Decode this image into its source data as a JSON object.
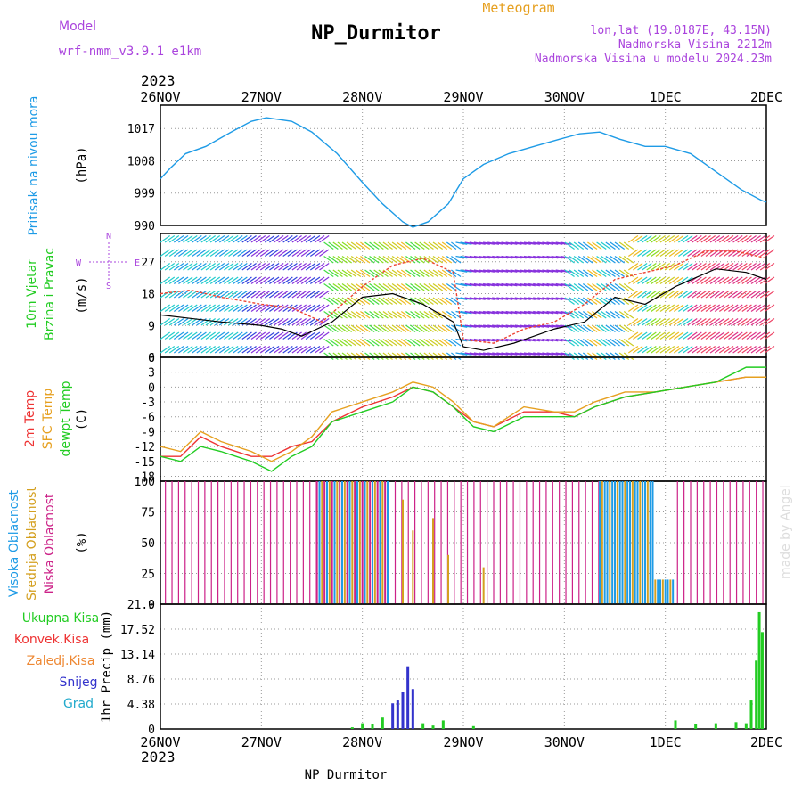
{
  "header": {
    "model_label": "Model",
    "model_name": "wrf-nmm_v3.9.1  e1km",
    "station": "NP_Durmitor",
    "meteogram": "Meteogram",
    "lonlat": "lon,lat (19.0187E, 43.15N)",
    "elevation": "Nadmorska Visina 2212m",
    "model_elevation": "Nadmorska Visina u modelu 2024.23m",
    "year_top": "2023",
    "year_bottom": "2023",
    "footer_station": "NP_Durmitor",
    "credit": "made by Angel"
  },
  "colors": {
    "pressure": "#1e9be6",
    "wind_label": "#22cc22",
    "temp_2m": "#ee3333",
    "temp_sfc": "#e6a020",
    "dewpoint": "#22cc22",
    "cloud_high": "#1e9be6",
    "cloud_mid": "#d4a020",
    "cloud_low": "#cc2288",
    "precip_total": "#22cc22",
    "precip_conv": "#ee3333",
    "precip_ice": "#ee8833",
    "snow": "#3333cc",
    "hail": "#22aacc",
    "model": "#aa44dd"
  },
  "chart_data": {
    "type": "line",
    "x_labels": [
      "26NOV",
      "27NOV",
      "28NOV",
      "29NOV",
      "30NOV",
      "1DEC",
      "2DEC"
    ],
    "panels": [
      {
        "id": "pressure",
        "ylabel": "(hPa)",
        "side_labels": [
          "Pritisak na nivou mora"
        ],
        "yticks": [
          "1017",
          "1008",
          "999",
          "990"
        ],
        "ylim": [
          990,
          1023.5
        ],
        "series": [
          {
            "key": "pressure",
            "x": [
              0,
              0.1,
              0.25,
              0.45,
              0.7,
              0.9,
              1.05,
              1.3,
              1.5,
              1.75,
              2.0,
              2.2,
              2.4,
              2.5,
              2.65,
              2.85,
              3.0,
              3.2,
              3.45,
              3.7,
              3.95,
              4.15,
              4.35,
              4.55,
              4.8,
              5.0,
              5.25,
              5.5,
              5.75,
              5.95,
              6.0
            ],
            "y": [
              1003,
              1006,
              1010,
              1012,
              1016,
              1019,
              1020,
              1019,
              1016,
              1010,
              1002,
              996,
              991,
              989.5,
              991,
              996,
              1003,
              1007,
              1010,
              1012,
              1014,
              1015.5,
              1016,
              1014,
              1012,
              1012,
              1010,
              1005,
              1000,
              997,
              996.5
            ]
          }
        ]
      },
      {
        "id": "wind",
        "ylabel": "(m/s)",
        "side_labels": [
          "10m Vjetar",
          "Brzina i Pravac"
        ],
        "compass": [
          "N",
          "W",
          "E",
          "S"
        ],
        "yticks": [
          "27",
          "18",
          "9",
          "0"
        ],
        "ylim": [
          0,
          35
        ],
        "series": [
          {
            "key": "wind_speed",
            "x": [
              0,
              0.3,
              0.6,
              1.0,
              1.2,
              1.4,
              1.7,
              2.0,
              2.3,
              2.6,
              2.9,
              3.0,
              3.2,
              3.5,
              3.9,
              4.2,
              4.5,
              4.8,
              5.1,
              5.5,
              5.8,
              6.0
            ],
            "y": [
              12,
              11,
              10,
              9,
              8,
              6,
              10,
              17,
              18,
              15,
              10,
              3,
              2,
              4,
              8,
              10,
              17,
              15,
              20,
              25,
              24,
              22
            ]
          },
          {
            "key": "wind_gust",
            "x": [
              0,
              0.3,
              0.6,
              1.0,
              1.3,
              1.6,
              2.0,
              2.3,
              2.6,
              2.9,
              3.0,
              3.3,
              3.6,
              3.9,
              4.2,
              4.5,
              4.8,
              5.1,
              5.4,
              5.7,
              6.0
            ],
            "y": [
              18,
              19,
              17,
              15,
              14,
              10,
              20,
              26,
              28,
              24,
              5,
              4,
              8,
              10,
              15,
              22,
              24,
              26,
              30,
              30,
              28
            ]
          }
        ]
      },
      {
        "id": "temperature",
        "ylabel": "(C)",
        "side_labels": [
          "2m Temp",
          "SFC Temp",
          "dewpt Temp"
        ],
        "yticks": [
          "6",
          "3",
          "0",
          "-3",
          "-6",
          "-9",
          "-12",
          "-15",
          "-18"
        ],
        "ylim": [
          -19,
          6
        ],
        "series": [
          {
            "key": "temp_2m",
            "x": [
              0,
              0.2,
              0.4,
              0.6,
              0.9,
              1.1,
              1.3,
              1.5,
              1.7,
              2.0,
              2.3,
              2.5,
              2.7,
              2.9,
              3.1,
              3.3,
              3.6,
              3.9,
              4.1,
              4.3,
              4.6,
              4.9,
              5.2,
              5.5,
              5.8,
              6.0
            ],
            "y": [
              -14,
              -14,
              -10,
              -12,
              -14,
              -14,
              -12,
              -11,
              -7,
              -4,
              -2,
              0,
              -1,
              -4,
              -7,
              -8,
              -5,
              -5,
              -6,
              -4,
              -2,
              -1,
              0,
              1,
              2,
              2
            ]
          },
          {
            "key": "temp_sfc",
            "x": [
              0,
              0.2,
              0.4,
              0.6,
              0.9,
              1.1,
              1.3,
              1.5,
              1.7,
              2.0,
              2.3,
              2.5,
              2.7,
              2.9,
              3.1,
              3.3,
              3.6,
              3.9,
              4.1,
              4.3,
              4.6,
              4.9,
              5.2,
              5.5,
              5.8,
              6.0
            ],
            "y": [
              -12,
              -13,
              -9,
              -11,
              -13,
              -15,
              -13,
              -10,
              -5,
              -3,
              -1,
              1,
              0,
              -3,
              -7,
              -8,
              -4,
              -5,
              -5,
              -3,
              -1,
              -1,
              0,
              1,
              2,
              2
            ]
          },
          {
            "key": "dewpoint",
            "x": [
              0,
              0.2,
              0.4,
              0.6,
              0.9,
              1.1,
              1.3,
              1.5,
              1.7,
              2.0,
              2.3,
              2.5,
              2.7,
              2.9,
              3.1,
              3.3,
              3.6,
              3.9,
              4.1,
              4.3,
              4.6,
              4.9,
              5.2,
              5.5,
              5.8,
              6.0
            ],
            "y": [
              -14,
              -15,
              -12,
              -13,
              -15,
              -17,
              -14,
              -12,
              -7,
              -5,
              -3,
              0,
              -1,
              -4,
              -8,
              -9,
              -6,
              -6,
              -6,
              -4,
              -2,
              -1,
              0,
              1,
              4,
              4
            ]
          }
        ]
      },
      {
        "id": "clouds",
        "ylabel": "(%)",
        "side_labels": [
          "Visoka Oblacnost",
          "Srednja Oblacnost",
          "Niska Oblacnost"
        ],
        "yticks": [
          "100",
          "75",
          "50",
          "25",
          "0"
        ],
        "ylim": [
          0,
          100
        ]
      },
      {
        "id": "precip",
        "ylabel": "1hr Precip (mm)",
        "side_labels": [
          "Ukupna Kisa",
          "Konvek.Kisa",
          "Zaledj.Kisa",
          "Snijeg",
          "Grad"
        ],
        "yticks": [
          "21.9",
          "17.52",
          "13.14",
          "8.76",
          "4.38",
          "0"
        ],
        "ylim": [
          0,
          21.9
        ],
        "series": [
          {
            "key": "precip_total",
            "x": [
              1.9,
              2.0,
              2.1,
              2.2,
              2.3,
              2.35,
              2.4,
              2.45,
              2.5,
              2.6,
              2.7,
              2.8,
              3.1,
              5.1,
              5.3,
              5.5,
              5.7,
              5.8,
              5.85,
              5.9,
              5.93,
              5.96
            ],
            "y": [
              0.3,
              1.0,
              0.8,
              2.0,
              4.5,
              5.0,
              6.5,
              11.0,
              7.0,
              1.0,
              0.6,
              1.5,
              0.5,
              1.5,
              0.8,
              1.0,
              1.2,
              1.0,
              5.0,
              12.0,
              20.5,
              17.0
            ]
          }
        ]
      }
    ]
  }
}
